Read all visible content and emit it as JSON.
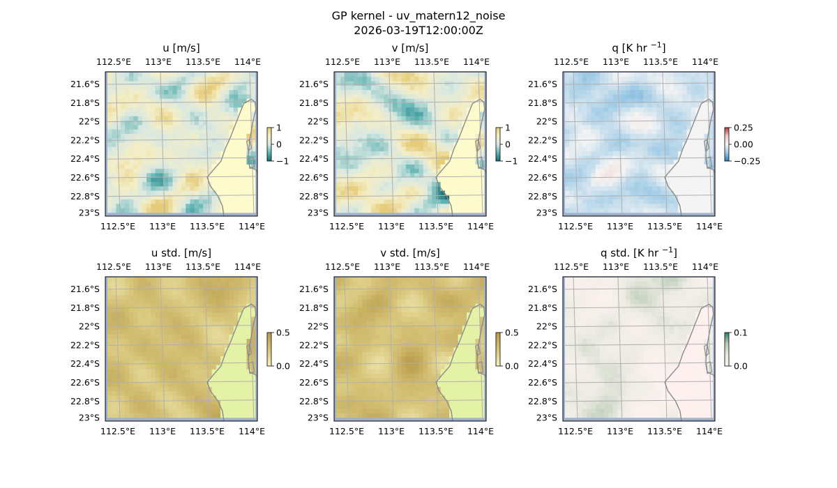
{
  "figure": {
    "title_line1": "GP kernel - uv_matern12_noise",
    "title_line2": "2026-03-19T12:00:00Z"
  },
  "chart_data": [
    {
      "type": "heatmap",
      "title": "u [m/s]",
      "xlabel": "",
      "ylabel": "",
      "lon_ticks": [
        "112.5°E",
        "113°E",
        "113.5°E",
        "114°E"
      ],
      "lat_ticks": [
        "21.6°S",
        "21.8°S",
        "22°S",
        "22.2°S",
        "22.4°S",
        "22.6°S",
        "22.8°S",
        "23°S"
      ],
      "xlim": [
        112.5,
        114.2
      ],
      "ylim": [
        -23.0,
        -21.5
      ],
      "colorbar": {
        "ticks": [
          "1",
          "0",
          "−1"
        ],
        "range": [
          -1,
          1
        ]
      },
      "colormap": [
        "#1a6f6f",
        "#62b4b4",
        "#d8e8e2",
        "#f4eec6",
        "#e6cc7a"
      ],
      "grid": true,
      "land_fill": "#fdfbcc"
    },
    {
      "type": "heatmap",
      "title": "v [m/s]",
      "xlabel": "",
      "ylabel": "",
      "lon_ticks": [
        "112.5°E",
        "113°E",
        "113.5°E",
        "114°E"
      ],
      "lat_ticks": [
        "21.6°S",
        "21.8°S",
        "22°S",
        "22.2°S",
        "22.4°S",
        "22.6°S",
        "22.8°S",
        "23°S"
      ],
      "xlim": [
        112.5,
        114.2
      ],
      "ylim": [
        -23.0,
        -21.5
      ],
      "colorbar": {
        "ticks": [
          "1",
          "0",
          "−1"
        ],
        "range": [
          -1,
          1
        ]
      },
      "colormap": [
        "#1a6f6f",
        "#62b4b4",
        "#d8e8e2",
        "#f4eec6",
        "#e6cc7a"
      ],
      "grid": true,
      "land_fill": "#fdfbcc"
    },
    {
      "type": "heatmap",
      "title": "q [K hr",
      "title_sup": "−1",
      "title_end": "]",
      "xlabel": "",
      "ylabel": "",
      "lon_ticks": [
        "112.5°E",
        "113°E",
        "113.5°E",
        "114°E"
      ],
      "lat_ticks": [
        "21.6°S",
        "21.8°S",
        "22°S",
        "22.2°S",
        "22.4°S",
        "22.6°S",
        "22.8°S",
        "23°S"
      ],
      "xlim": [
        112.5,
        114.2
      ],
      "ylim": [
        -23.0,
        -21.5
      ],
      "colorbar": {
        "ticks": [
          "0.25",
          "0.00",
          "−0.25"
        ],
        "range": [
          -0.35,
          0.35
        ]
      },
      "colormap": [
        "#2a7fb8",
        "#9fcbe6",
        "#f4f4f4",
        "#f2c9c4",
        "#b33a3a"
      ],
      "grid": true,
      "land_fill": "#f4f4f4"
    },
    {
      "type": "heatmap",
      "title": "u std. [m/s]",
      "xlabel": "",
      "ylabel": "",
      "lon_ticks": [
        "112.5°E",
        "113°E",
        "113.5°E",
        "114°E"
      ],
      "lat_ticks": [
        "21.6°S",
        "21.8°S",
        "22°S",
        "22.2°S",
        "22.4°S",
        "22.6°S",
        "22.8°S",
        "23°S"
      ],
      "xlim": [
        112.5,
        114.2
      ],
      "ylim": [
        -23.0,
        -21.5
      ],
      "colorbar": {
        "ticks": [
          "0.5",
          "0.0"
        ],
        "range": [
          0,
          0.5
        ]
      },
      "colormap": [
        "#f6f3c0",
        "#d7c57a",
        "#b89a48"
      ],
      "grid": true,
      "land_fill": "#e4f2a6"
    },
    {
      "type": "heatmap",
      "title": "v std. [m/s]",
      "xlabel": "",
      "ylabel": "",
      "lon_ticks": [
        "112.5°E",
        "113°E",
        "113.5°E",
        "114°E"
      ],
      "lat_ticks": [
        "21.6°S",
        "21.8°S",
        "22°S",
        "22.2°S",
        "22.4°S",
        "22.6°S",
        "22.8°S",
        "23°S"
      ],
      "xlim": [
        112.5,
        114.2
      ],
      "ylim": [
        -23.0,
        -21.5
      ],
      "colorbar": {
        "ticks": [
          "0.5",
          "0.0"
        ],
        "range": [
          0,
          0.5
        ]
      },
      "colormap": [
        "#f6f3c0",
        "#d7c57a",
        "#b89a48"
      ],
      "grid": true,
      "land_fill": "#e4f2a6"
    },
    {
      "type": "heatmap",
      "title": "q std. [K hr",
      "title_sup": "−1",
      "title_end": "]",
      "xlabel": "",
      "ylabel": "",
      "lon_ticks": [
        "112.5°E",
        "113°E",
        "113.5°E",
        "114°E"
      ],
      "lat_ticks": [
        "21.6°S",
        "21.8°S",
        "22°S",
        "22.2°S",
        "22.4°S",
        "22.6°S",
        "22.8°S",
        "23°S"
      ],
      "xlim": [
        112.5,
        114.2
      ],
      "ylim": [
        -23.0,
        -21.5
      ],
      "colorbar": {
        "ticks": [
          "0.1",
          "0.0"
        ],
        "range": [
          0,
          0.12
        ]
      },
      "colormap": [
        "#fbf1ee",
        "#ecebe3",
        "#b9cbb4",
        "#2d7f6a"
      ],
      "grid": true,
      "land_fill": "#fdf0ee"
    }
  ],
  "colors": {
    "ocean_edge": "#9ab0d6",
    "coast": "#8a8a8a",
    "grid": "#b0b0b0"
  }
}
